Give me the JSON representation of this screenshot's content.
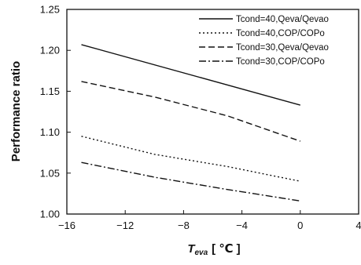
{
  "chart_data": {
    "type": "line",
    "xlabel": "T",
    "xlabel_sub": "eva",
    "xlabel_unit": "[ ℃ ]",
    "ylabel": "Performance ratio",
    "xlim": [
      -16,
      4
    ],
    "ylim": [
      1.0,
      1.25
    ],
    "xticks": [
      -16,
      -12,
      -8,
      -4,
      0,
      4
    ],
    "yticks": [
      1.0,
      1.05,
      1.1,
      1.15,
      1.2,
      1.25
    ],
    "xtick_labels": [
      "−16",
      "−12",
      "−8",
      "−4",
      "0",
      "4"
    ],
    "ytick_labels": [
      "1.00",
      "1.05",
      "1.10",
      "1.15",
      "1.20",
      "1.25"
    ],
    "grid": false,
    "legend_position": "top-right",
    "series": [
      {
        "name": "Tcond=40,Qeva/Qevao",
        "style": "solid",
        "x": [
          -15,
          0
        ],
        "values": [
          1.207,
          1.133
        ]
      },
      {
        "name": "Tcond=40,COP/COPo",
        "style": "dotted",
        "x": [
          -15,
          -10,
          -5,
          0
        ],
        "values": [
          1.095,
          1.073,
          1.058,
          1.04
        ]
      },
      {
        "name": "Tcond=30,Qeva/Qevao",
        "style": "dashed",
        "x": [
          -15,
          -10,
          -5,
          0
        ],
        "values": [
          1.162,
          1.143,
          1.12,
          1.089
        ]
      },
      {
        "name": "Tcond=30,COP/COPo",
        "style": "dashdot",
        "x": [
          -15,
          -10,
          -5,
          0
        ],
        "values": [
          1.063,
          1.045,
          1.03,
          1.016
        ]
      }
    ]
  }
}
